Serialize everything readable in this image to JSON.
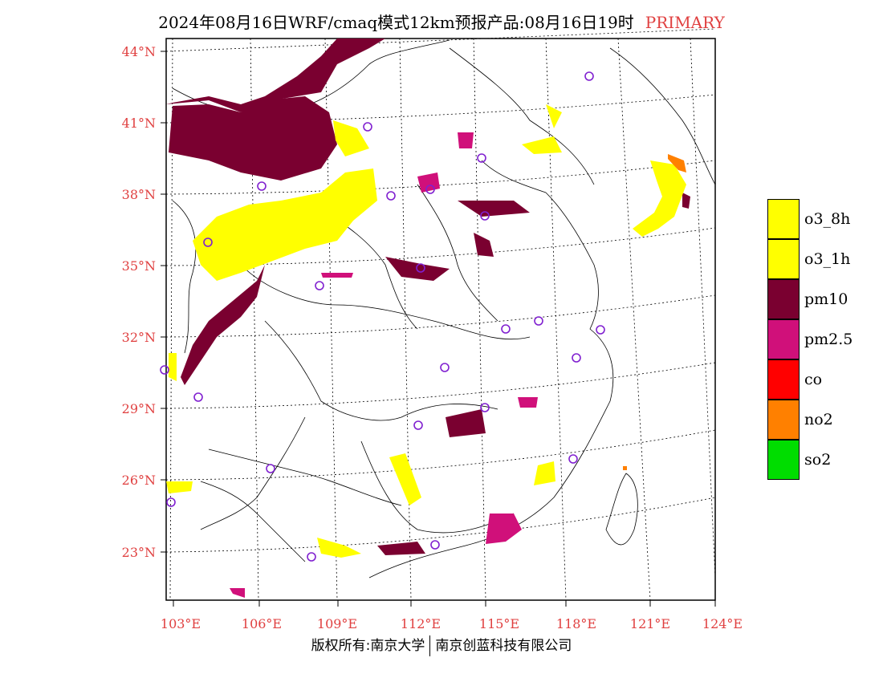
{
  "title": {
    "main": "2024年08月16日WRF/cmaq模式12km预报产品:08月16日19时",
    "tag": "PRIMARY"
  },
  "axes": {
    "lat_labels": [
      "44°N",
      "41°N",
      "38°N",
      "35°N",
      "32°N",
      "29°N",
      "26°N",
      "23°N"
    ],
    "lon_labels": [
      "103°E",
      "106°E",
      "109°E",
      "112°E",
      "115°E",
      "118°E",
      "121°E",
      "124°E"
    ]
  },
  "legend": [
    {
      "label": "o3_8h",
      "color": "#ffff00"
    },
    {
      "label": "o3_1h",
      "color": "#ffff00"
    },
    {
      "label": "pm10",
      "color": "#7a0030"
    },
    {
      "label": "pm2.5",
      "color": "#d0107a"
    },
    {
      "label": "co",
      "color": "#ff0000"
    },
    {
      "label": "no2",
      "color": "#ff8000"
    },
    {
      "label": "so2",
      "color": "#00dd00"
    }
  ],
  "footer": {
    "left": "版权所有:南京大学",
    "right": "南京创蓝科技有限公司"
  },
  "colors": {
    "label_red": "#e04040",
    "station_marker": "#8020d0"
  }
}
